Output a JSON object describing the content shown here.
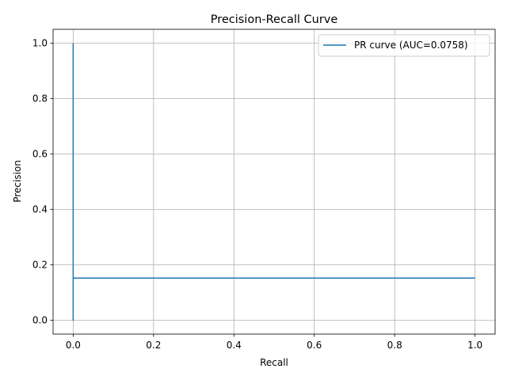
{
  "chart_data": {
    "type": "line",
    "title": "Precision-Recall Curve",
    "xlabel": "Recall",
    "ylabel": "Precision",
    "xlim": [
      -0.05,
      1.05
    ],
    "ylim": [
      -0.05,
      1.05
    ],
    "xticks": [
      0.0,
      0.2,
      0.4,
      0.6,
      0.8,
      1.0
    ],
    "xtick_labels": [
      "0.0",
      "0.2",
      "0.4",
      "0.6",
      "0.8",
      "1.0"
    ],
    "yticks": [
      0.0,
      0.2,
      0.4,
      0.6,
      0.8,
      1.0
    ],
    "ytick_labels": [
      "0.0",
      "0.2",
      "0.4",
      "0.6",
      "0.8",
      "1.0"
    ],
    "grid": true,
    "legend_position": "upper-right",
    "series": [
      {
        "name": "PR curve (AUC=0.0758)",
        "color": "#1f77b4",
        "x": [
          1.0,
          0.0,
          0.0,
          0.0
        ],
        "y": [
          0.152,
          0.152,
          0.0,
          1.0
        ]
      }
    ]
  }
}
